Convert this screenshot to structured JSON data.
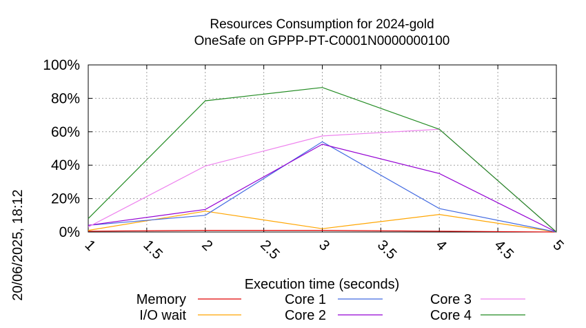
{
  "chart_data": {
    "type": "line",
    "title": "Resources Consumption for 2024-gold",
    "subtitle": "OneSafe on GPPP-PT-C0001N0000000100",
    "xlabel": "Execution time (seconds)",
    "ylabel": "",
    "side_text": "20/06/2025, 18:12",
    "xlim": [
      1,
      5
    ],
    "ylim": [
      0,
      100
    ],
    "x_ticks": [
      "1",
      "1.5",
      "2",
      "2.5",
      "3",
      "3.5",
      "4",
      "4.5",
      "5"
    ],
    "y_ticks": [
      "0%",
      "20%",
      "40%",
      "60%",
      "80%",
      "100%"
    ],
    "grid": true,
    "legend_position": "bottom",
    "series": [
      {
        "name": "Memory",
        "color": "#e00000",
        "x": [
          1,
          2,
          3,
          4,
          5
        ],
        "y": [
          0.5,
          1,
          1,
          0.5,
          0
        ]
      },
      {
        "name": "I/O wait",
        "color": "#ffa500",
        "x": [
          1,
          2,
          3,
          4,
          5
        ],
        "y": [
          1,
          12.5,
          2,
          10.5,
          0
        ]
      },
      {
        "name": "Core 1",
        "color": "#4169e1",
        "x": [
          1,
          2,
          3,
          4,
          5
        ],
        "y": [
          4,
          10,
          54,
          14,
          0
        ]
      },
      {
        "name": "Core 2",
        "color": "#9400d3",
        "x": [
          1,
          2,
          3,
          4,
          5
        ],
        "y": [
          4,
          13.5,
          52.5,
          35,
          0
        ]
      },
      {
        "name": "Core 3",
        "color": "#ee82ee",
        "x": [
          1,
          2,
          3,
          4,
          5
        ],
        "y": [
          3,
          39.5,
          57.5,
          61.5,
          0
        ]
      },
      {
        "name": "Core 4",
        "color": "#228b22",
        "x": [
          1,
          2,
          3,
          4,
          5
        ],
        "y": [
          8,
          78.5,
          86.5,
          61.5,
          0
        ]
      }
    ]
  }
}
